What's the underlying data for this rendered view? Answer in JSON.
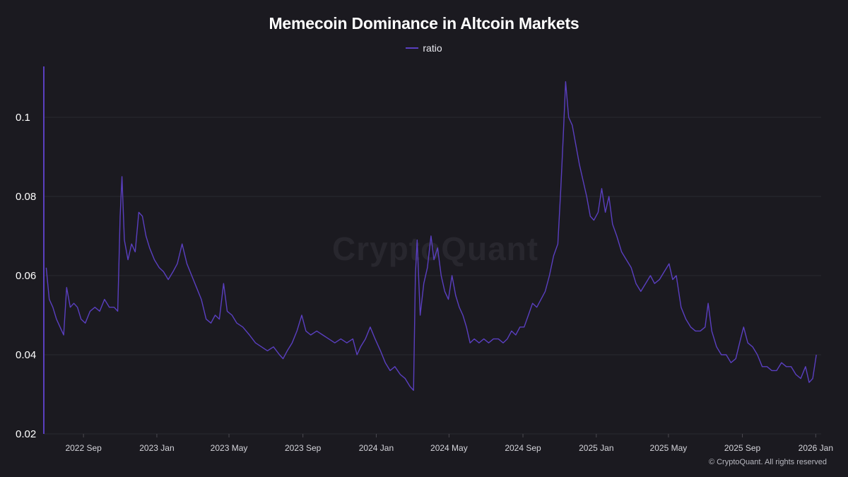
{
  "chart_data": {
    "type": "line",
    "title": "Memecoin Dominance in Altcoin Markets",
    "xlabel": "",
    "ylabel": "",
    "ylim": [
      0.02,
      0.11
    ],
    "y_ticks": [
      "0.1",
      "0.08",
      "0.06",
      "0.04",
      "0.02"
    ],
    "x_ticks": [
      "2022 Sep",
      "2023 Jan",
      "2023 May",
      "2023 Sep",
      "2024 Jan",
      "2024 May",
      "2024 Sep",
      "2025 Jan",
      "2025 May",
      "2025 Sep",
      "2026 Jan"
    ],
    "legend_position": "top-center",
    "grid": "horizontal",
    "series": [
      {
        "name": "ratio",
        "color": "#5a3fc0",
        "points": [
          [
            "2022-07-01",
            0.062
          ],
          [
            "2022-07-06",
            0.054
          ],
          [
            "2022-07-12",
            0.052
          ],
          [
            "2022-07-18",
            0.049
          ],
          [
            "2022-07-24",
            0.047
          ],
          [
            "2022-07-30",
            0.045
          ],
          [
            "2022-08-04",
            0.057
          ],
          [
            "2022-08-10",
            0.052
          ],
          [
            "2022-08-16",
            0.053
          ],
          [
            "2022-08-22",
            0.052
          ],
          [
            "2022-08-28",
            0.049
          ],
          [
            "2022-09-04",
            0.048
          ],
          [
            "2022-09-12",
            0.051
          ],
          [
            "2022-09-20",
            0.052
          ],
          [
            "2022-09-28",
            0.051
          ],
          [
            "2022-10-06",
            0.054
          ],
          [
            "2022-10-14",
            0.052
          ],
          [
            "2022-10-22",
            0.052
          ],
          [
            "2022-10-28",
            0.051
          ],
          [
            "2022-11-01",
            0.075
          ],
          [
            "2022-11-04",
            0.085
          ],
          [
            "2022-11-08",
            0.069
          ],
          [
            "2022-11-14",
            0.064
          ],
          [
            "2022-11-20",
            0.068
          ],
          [
            "2022-11-26",
            0.066
          ],
          [
            "2022-12-02",
            0.076
          ],
          [
            "2022-12-08",
            0.075
          ],
          [
            "2022-12-14",
            0.07
          ],
          [
            "2022-12-20",
            0.067
          ],
          [
            "2022-12-28",
            0.064
          ],
          [
            "2023-01-05",
            0.062
          ],
          [
            "2023-01-12",
            0.061
          ],
          [
            "2023-01-20",
            0.059
          ],
          [
            "2023-01-28",
            0.061
          ],
          [
            "2023-02-04",
            0.063
          ],
          [
            "2023-02-12",
            0.068
          ],
          [
            "2023-02-20",
            0.063
          ],
          [
            "2023-02-28",
            0.06
          ],
          [
            "2023-03-08",
            0.057
          ],
          [
            "2023-03-16",
            0.054
          ],
          [
            "2023-03-24",
            0.049
          ],
          [
            "2023-04-01",
            0.048
          ],
          [
            "2023-04-08",
            0.05
          ],
          [
            "2023-04-15",
            0.049
          ],
          [
            "2023-04-22",
            0.058
          ],
          [
            "2023-04-28",
            0.051
          ],
          [
            "2023-05-06",
            0.05
          ],
          [
            "2023-05-14",
            0.048
          ],
          [
            "2023-05-24",
            0.047
          ],
          [
            "2023-06-04",
            0.045
          ],
          [
            "2023-06-14",
            0.043
          ],
          [
            "2023-06-24",
            0.042
          ],
          [
            "2023-07-04",
            0.041
          ],
          [
            "2023-07-14",
            0.042
          ],
          [
            "2023-07-24",
            0.04
          ],
          [
            "2023-07-30",
            0.039
          ],
          [
            "2023-08-06",
            0.041
          ],
          [
            "2023-08-14",
            0.043
          ],
          [
            "2023-08-22",
            0.046
          ],
          [
            "2023-08-30",
            0.05
          ],
          [
            "2023-09-06",
            0.046
          ],
          [
            "2023-09-14",
            0.045
          ],
          [
            "2023-09-24",
            0.046
          ],
          [
            "2023-10-04",
            0.045
          ],
          [
            "2023-10-14",
            0.044
          ],
          [
            "2023-10-24",
            0.043
          ],
          [
            "2023-11-03",
            0.044
          ],
          [
            "2023-11-13",
            0.043
          ],
          [
            "2023-11-23",
            0.044
          ],
          [
            "2023-11-30",
            0.04
          ],
          [
            "2023-12-06",
            0.042
          ],
          [
            "2023-12-14",
            0.044
          ],
          [
            "2023-12-22",
            0.047
          ],
          [
            "2023-12-30",
            0.044
          ],
          [
            "2024-01-08",
            0.041
          ],
          [
            "2024-01-16",
            0.038
          ],
          [
            "2024-01-24",
            0.036
          ],
          [
            "2024-02-01",
            0.037
          ],
          [
            "2024-02-10",
            0.035
          ],
          [
            "2024-02-18",
            0.034
          ],
          [
            "2024-02-26",
            0.032
          ],
          [
            "2024-03-03",
            0.031
          ],
          [
            "2024-03-06",
            0.06
          ],
          [
            "2024-03-09",
            0.069
          ],
          [
            "2024-03-14",
            0.05
          ],
          [
            "2024-03-20",
            0.058
          ],
          [
            "2024-03-26",
            0.062
          ],
          [
            "2024-04-01",
            0.07
          ],
          [
            "2024-04-06",
            0.064
          ],
          [
            "2024-04-12",
            0.067
          ],
          [
            "2024-04-18",
            0.06
          ],
          [
            "2024-04-24",
            0.056
          ],
          [
            "2024-04-30",
            0.054
          ],
          [
            "2024-05-06",
            0.06
          ],
          [
            "2024-05-12",
            0.055
          ],
          [
            "2024-05-18",
            0.052
          ],
          [
            "2024-05-24",
            0.05
          ],
          [
            "2024-05-30",
            0.047
          ],
          [
            "2024-06-05",
            0.043
          ],
          [
            "2024-06-12",
            0.044
          ],
          [
            "2024-06-20",
            0.043
          ],
          [
            "2024-06-28",
            0.044
          ],
          [
            "2024-07-06",
            0.043
          ],
          [
            "2024-07-14",
            0.044
          ],
          [
            "2024-07-22",
            0.044
          ],
          [
            "2024-07-30",
            0.043
          ],
          [
            "2024-08-06",
            0.044
          ],
          [
            "2024-08-13",
            0.046
          ],
          [
            "2024-08-20",
            0.045
          ],
          [
            "2024-08-27",
            0.047
          ],
          [
            "2024-09-03",
            0.047
          ],
          [
            "2024-09-10",
            0.05
          ],
          [
            "2024-09-17",
            0.053
          ],
          [
            "2024-09-24",
            0.052
          ],
          [
            "2024-10-01",
            0.054
          ],
          [
            "2024-10-08",
            0.056
          ],
          [
            "2024-10-15",
            0.06
          ],
          [
            "2024-10-22",
            0.065
          ],
          [
            "2024-10-29",
            0.068
          ],
          [
            "2024-11-03",
            0.082
          ],
          [
            "2024-11-07",
            0.095
          ],
          [
            "2024-11-11",
            0.109
          ],
          [
            "2024-11-16",
            0.1
          ],
          [
            "2024-11-22",
            0.098
          ],
          [
            "2024-11-28",
            0.093
          ],
          [
            "2024-12-04",
            0.088
          ],
          [
            "2024-12-10",
            0.084
          ],
          [
            "2024-12-16",
            0.08
          ],
          [
            "2024-12-22",
            0.075
          ],
          [
            "2024-12-28",
            0.074
          ],
          [
            "2025-01-04",
            0.076
          ],
          [
            "2025-01-10",
            0.082
          ],
          [
            "2025-01-16",
            0.076
          ],
          [
            "2025-01-22",
            0.08
          ],
          [
            "2025-01-28",
            0.073
          ],
          [
            "2025-02-04",
            0.07
          ],
          [
            "2025-02-12",
            0.066
          ],
          [
            "2025-02-20",
            0.064
          ],
          [
            "2025-02-28",
            0.062
          ],
          [
            "2025-03-08",
            0.058
          ],
          [
            "2025-03-16",
            0.056
          ],
          [
            "2025-03-24",
            0.058
          ],
          [
            "2025-04-01",
            0.06
          ],
          [
            "2025-04-08",
            0.058
          ],
          [
            "2025-04-16",
            0.059
          ],
          [
            "2025-04-24",
            0.061
          ],
          [
            "2025-05-02",
            0.063
          ],
          [
            "2025-05-08",
            0.059
          ],
          [
            "2025-05-14",
            0.06
          ],
          [
            "2025-05-22",
            0.052
          ],
          [
            "2025-05-30",
            0.049
          ],
          [
            "2025-06-07",
            0.047
          ],
          [
            "2025-06-15",
            0.046
          ],
          [
            "2025-06-23",
            0.046
          ],
          [
            "2025-07-01",
            0.047
          ],
          [
            "2025-07-06",
            0.053
          ],
          [
            "2025-07-12",
            0.046
          ],
          [
            "2025-07-20",
            0.042
          ],
          [
            "2025-07-28",
            0.04
          ],
          [
            "2025-08-05",
            0.04
          ],
          [
            "2025-08-13",
            0.038
          ],
          [
            "2025-08-21",
            0.039
          ],
          [
            "2025-08-29",
            0.044
          ],
          [
            "2025-09-03",
            0.047
          ],
          [
            "2025-09-10",
            0.043
          ],
          [
            "2025-09-18",
            0.042
          ],
          [
            "2025-09-26",
            0.04
          ],
          [
            "2025-10-04",
            0.037
          ],
          [
            "2025-10-12",
            0.037
          ],
          [
            "2025-10-20",
            0.036
          ],
          [
            "2025-10-28",
            0.036
          ],
          [
            "2025-11-05",
            0.038
          ],
          [
            "2025-11-13",
            0.037
          ],
          [
            "2025-11-21",
            0.037
          ],
          [
            "2025-11-29",
            0.035
          ],
          [
            "2025-12-07",
            0.034
          ],
          [
            "2025-12-15",
            0.037
          ],
          [
            "2025-12-21",
            0.033
          ],
          [
            "2025-12-27",
            0.034
          ],
          [
            "2026-01-02",
            0.04
          ]
        ]
      }
    ]
  },
  "watermark": "CryptoQuant",
  "copyright": "© CryptoQuant. All rights reserved"
}
